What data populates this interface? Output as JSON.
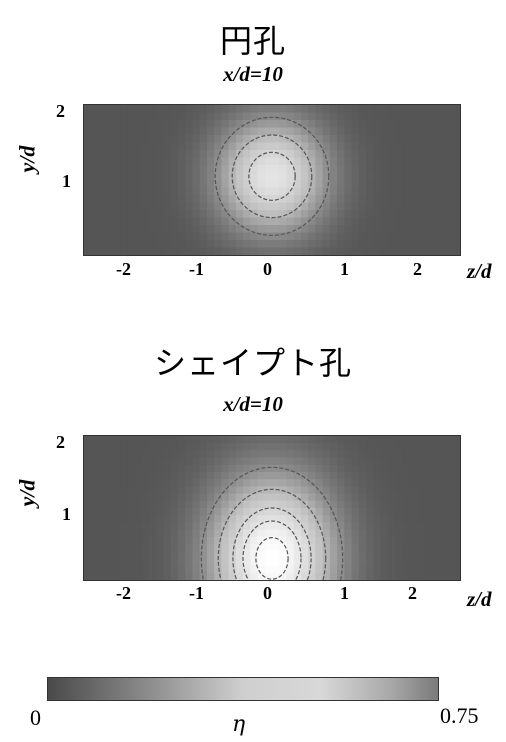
{
  "chart_data": [
    {
      "type": "heatmap",
      "title": "円孔",
      "subtitle": "x/d=10",
      "xlabel": "z/d",
      "ylabel": "y/d",
      "xlim": [
        -2.6,
        2.6
      ],
      "ylim": [
        0,
        2
      ],
      "xticks": [
        "-2",
        "-1",
        "0",
        "1",
        "2"
      ],
      "xtick_values": [
        -2,
        -1,
        0,
        1,
        2
      ],
      "yticks": [
        "1",
        "2"
      ],
      "ytick_values": [
        1,
        2
      ],
      "peak_center": {
        "z": 0.0,
        "y": 1.05
      },
      "peak_value": 0.6,
      "spread": {
        "z": 0.75,
        "y": 0.75
      },
      "colormap": [
        "#555555",
        "#bdbdbd",
        "#ffffff"
      ]
    },
    {
      "type": "heatmap",
      "title": "シェイプト孔",
      "subtitle": "x/d=10",
      "xlabel": "z/d",
      "ylabel": "y/d",
      "xlim": [
        -2.6,
        2.6
      ],
      "ylim": [
        0,
        2
      ],
      "xticks": [
        "-2",
        "-1",
        "0",
        "1",
        "2"
      ],
      "xtick_values": [
        -2,
        -1,
        0,
        1,
        2
      ],
      "yticks": [
        "1",
        "2"
      ],
      "ytick_values": [
        1,
        2
      ],
      "peak_center": {
        "z": 0.0,
        "y": 0.3
      },
      "peak_value": 0.75,
      "spread": {
        "z": 0.85,
        "y": 1.1
      },
      "colormap": [
        "#555555",
        "#bdbdbd",
        "#ffffff"
      ]
    }
  ],
  "colorbar": {
    "min_label": "0",
    "max_label": "0.75",
    "symbol": "η",
    "min": 0,
    "max": 0.75
  }
}
